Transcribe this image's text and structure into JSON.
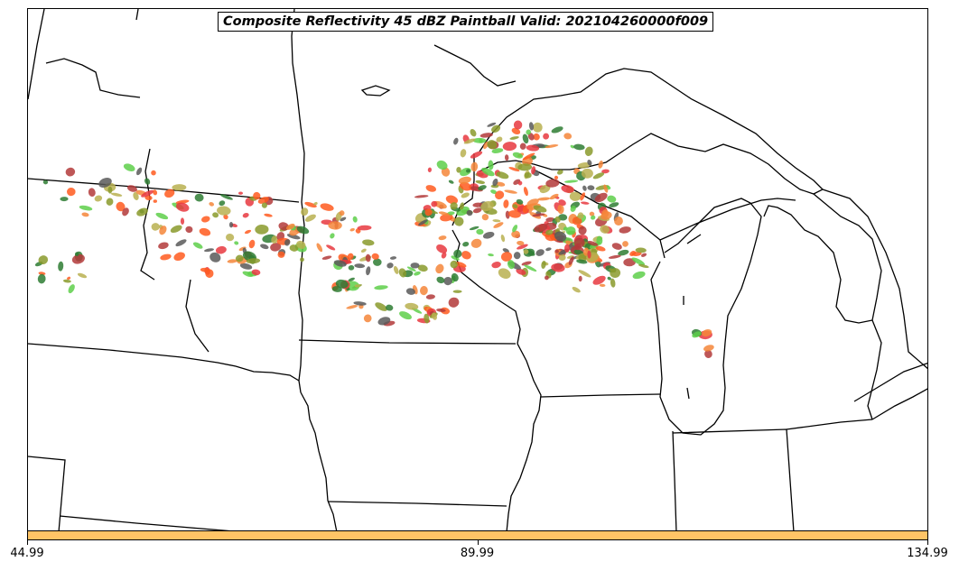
{
  "title": "Composite Reflectivity 45 dBZ Paintball Valid: 202104260000f009",
  "colorbar": {
    "color": "#ffc466",
    "ticks": [
      {
        "label": "44.99",
        "frac": 0.0
      },
      {
        "label": "89.99",
        "frac": 0.5
      },
      {
        "label": "134.99",
        "frac": 1.0
      }
    ]
  },
  "member_colors": [
    "#e8383f",
    "#f4863a",
    "#5ecf4a",
    "#8a9a2c",
    "#b33a3a",
    "#595959",
    "#ff5a1f",
    "#b8b050",
    "#2e7d32"
  ],
  "map_style": {
    "land": "#ffffff",
    "lines": "#000000"
  }
}
